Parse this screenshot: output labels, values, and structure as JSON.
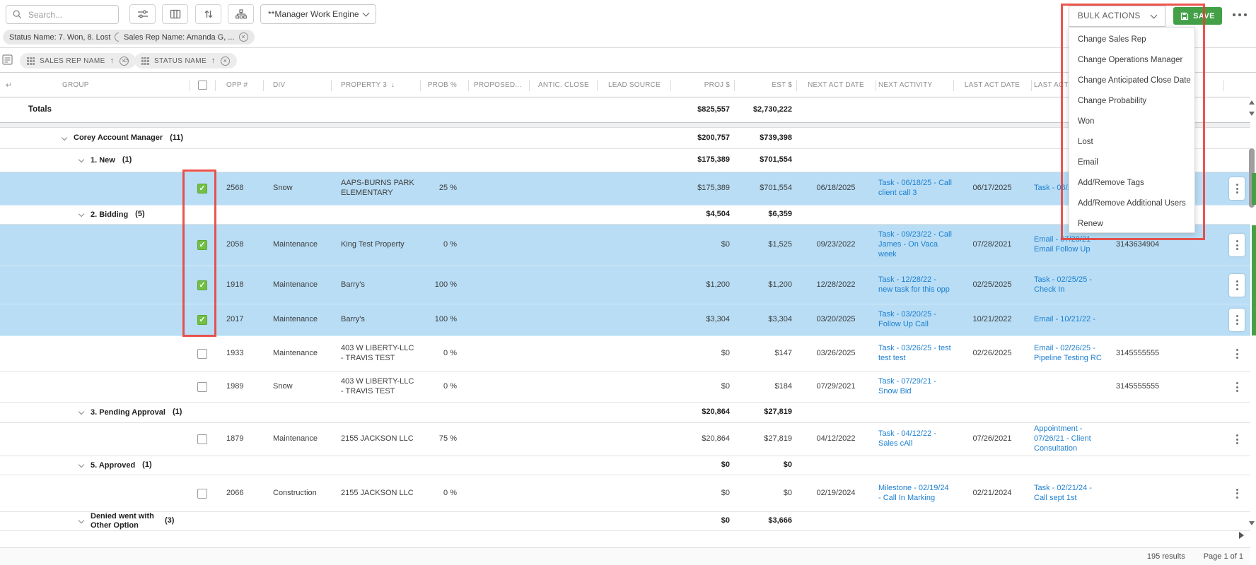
{
  "toolbar": {
    "search_placeholder": "Search...",
    "view_selector": "**Manager Work Engine",
    "bulk_actions_label": "BULK ACTIONS",
    "save_label": "SAVE"
  },
  "filters": [
    {
      "label": "Status Name: 7. Won, 8. Lost"
    },
    {
      "label": "Sales Rep Name: Amanda G, ..."
    }
  ],
  "group_by": [
    {
      "label": "SALES REP NAME"
    },
    {
      "label": "STATUS NAME"
    }
  ],
  "bulk_menu": [
    "Change Sales Rep",
    "Change Operations Manager",
    "Change Anticipated Close Date",
    "Change Probability",
    "Won",
    "Lost",
    "Email",
    "Add/Remove Tags",
    "Add/Remove Additional Users",
    "Renew"
  ],
  "columns": {
    "group": "GROUP",
    "opp": "OPP #",
    "div": "DIV",
    "prop": "PROPERTY 3",
    "prob": "PROB %",
    "proposed": "PROPOSED...",
    "antic": "ANTIC. CLOSE",
    "lead": "LEAD SOURCE",
    "proj": "PROJ $",
    "est": "EST $",
    "nextdate": "NEXT ACT DATE",
    "nextact": "NEXT ACTIVITY",
    "lastdate": "LAST ACT DATE",
    "lastact": "LAST ACTIVITY"
  },
  "totals": {
    "label": "Totals",
    "proj": "$825,557",
    "est": "$2,730,222"
  },
  "rows": [
    {
      "type": "group",
      "level": 1,
      "label": "Corey Account Manager",
      "count": "(11)",
      "proj": "$200,757",
      "est": "$739,398"
    },
    {
      "type": "group",
      "level": 2,
      "label": "1. New",
      "count": "(1)",
      "proj": "$175,389",
      "est": "$701,554"
    },
    {
      "type": "opp",
      "selected": true,
      "checked": true,
      "opp": "2568",
      "div": "Snow",
      "prop": "AAPS-BURNS PARK ELEMENTARY",
      "prob": "25 %",
      "proj": "$175,389",
      "est": "$701,554",
      "next_date": "06/18/2025",
      "next_activity": "Task - 06/18/25 - Call client call 3",
      "last_date": "06/17/2025",
      "last_activity": "Task - 06/17/2 copy",
      "phone": ""
    },
    {
      "type": "group",
      "level": 2,
      "label": "2. Bidding",
      "count": "(5)",
      "proj": "$4,504",
      "est": "$6,359"
    },
    {
      "type": "opp",
      "selected": true,
      "checked": true,
      "opp": "2058",
      "div": "Maintenance",
      "prop": "King Test Property",
      "prob": "0 %",
      "proj": "$0",
      "est": "$1,525",
      "next_date": "09/23/2022",
      "next_activity": "Task - 09/23/22 - Call James - On Vaca week",
      "last_date": "07/28/2021",
      "last_activity": "Email - 07/28/21 - Email Follow Up",
      "phone": "3143634904"
    },
    {
      "type": "opp",
      "selected": true,
      "checked": true,
      "opp": "1918",
      "div": "Maintenance",
      "prop": "Barry's",
      "prob": "100 %",
      "proj": "$1,200",
      "est": "$1,200",
      "next_date": "12/28/2022",
      "next_activity": "Task - 12/28/22 - new task for this opp",
      "last_date": "02/25/2025",
      "last_activity": "Task - 02/25/25 - Check In",
      "phone": ""
    },
    {
      "type": "opp",
      "selected": true,
      "checked": true,
      "opp": "2017",
      "div": "Maintenance",
      "prop": "Barry's",
      "prob": "100 %",
      "proj": "$3,304",
      "est": "$3,304",
      "next_date": "03/20/2025",
      "next_activity": "Task - 03/20/25 - Follow Up Call",
      "last_date": "10/21/2022",
      "last_activity": "Email - 10/21/22 -",
      "phone": ""
    },
    {
      "type": "opp",
      "selected": false,
      "checked": false,
      "opp": "1933",
      "div": "Maintenance",
      "prop": "403 W LIBERTY-LLC - TRAVIS TEST",
      "prob": "0 %",
      "proj": "$0",
      "est": "$147",
      "next_date": "03/26/2025",
      "next_activity": "Task - 03/26/25 - test test test",
      "last_date": "02/26/2025",
      "last_activity": "Email - 02/26/25 - Pipeline Testing RC",
      "phone": "3145555555"
    },
    {
      "type": "opp",
      "selected": false,
      "checked": false,
      "opp": "1989",
      "div": "Snow",
      "prop": "403 W LIBERTY-LLC - TRAVIS TEST",
      "prob": "0 %",
      "proj": "$0",
      "est": "$184",
      "next_date": "07/29/2021",
      "next_activity": "Task - 07/29/21 - Snow Bid",
      "last_date": "",
      "last_activity": "",
      "phone": "3145555555"
    },
    {
      "type": "group",
      "level": 2,
      "label": "3. Pending Approval",
      "count": "(1)",
      "proj": "$20,864",
      "est": "$27,819"
    },
    {
      "type": "opp",
      "selected": false,
      "checked": false,
      "opp": "1879",
      "div": "Maintenance",
      "prop": "2155 JACKSON LLC",
      "prob": "75 %",
      "proj": "$20,864",
      "est": "$27,819",
      "next_date": "04/12/2022",
      "next_activity": "Task - 04/12/22 - Sales cAll",
      "last_date": "07/26/2021",
      "last_activity": "Appointment - 07/26/21 - Client Consultation",
      "phone": ""
    },
    {
      "type": "group",
      "level": 2,
      "label": "5. Approved",
      "count": "(1)",
      "proj": "$0",
      "est": "$0"
    },
    {
      "type": "opp",
      "selected": false,
      "checked": false,
      "opp": "2066",
      "div": "Construction",
      "prop": "2155 JACKSON LLC",
      "prob": "0 %",
      "proj": "$0",
      "est": "$0",
      "next_date": "02/19/2024",
      "next_activity": "Milestone - 02/19/24 - Call In Marking",
      "last_date": "02/21/2024",
      "last_activity": "Task - 02/21/24 - Call sept 1st",
      "phone": ""
    },
    {
      "type": "group",
      "level": 2,
      "label": "Denied went with Other Option",
      "count": "(3)",
      "proj": "$0",
      "est": "$3,666",
      "wrap": true
    }
  ],
  "status_bar": {
    "results": "195 results",
    "page": "Page 1 of 1"
  },
  "icons": {
    "close": "×",
    "sort_asc": "↑",
    "sort_desc": "↓",
    "return": "↵",
    "breadcrumb_sep": ">",
    "check": "✓"
  },
  "colors": {
    "selected_row": "#b8ddf5",
    "link_blue": "#1c7fd0",
    "save_green": "#43a047",
    "check_green": "#72bf44",
    "annotation_red": "#e83e36"
  }
}
